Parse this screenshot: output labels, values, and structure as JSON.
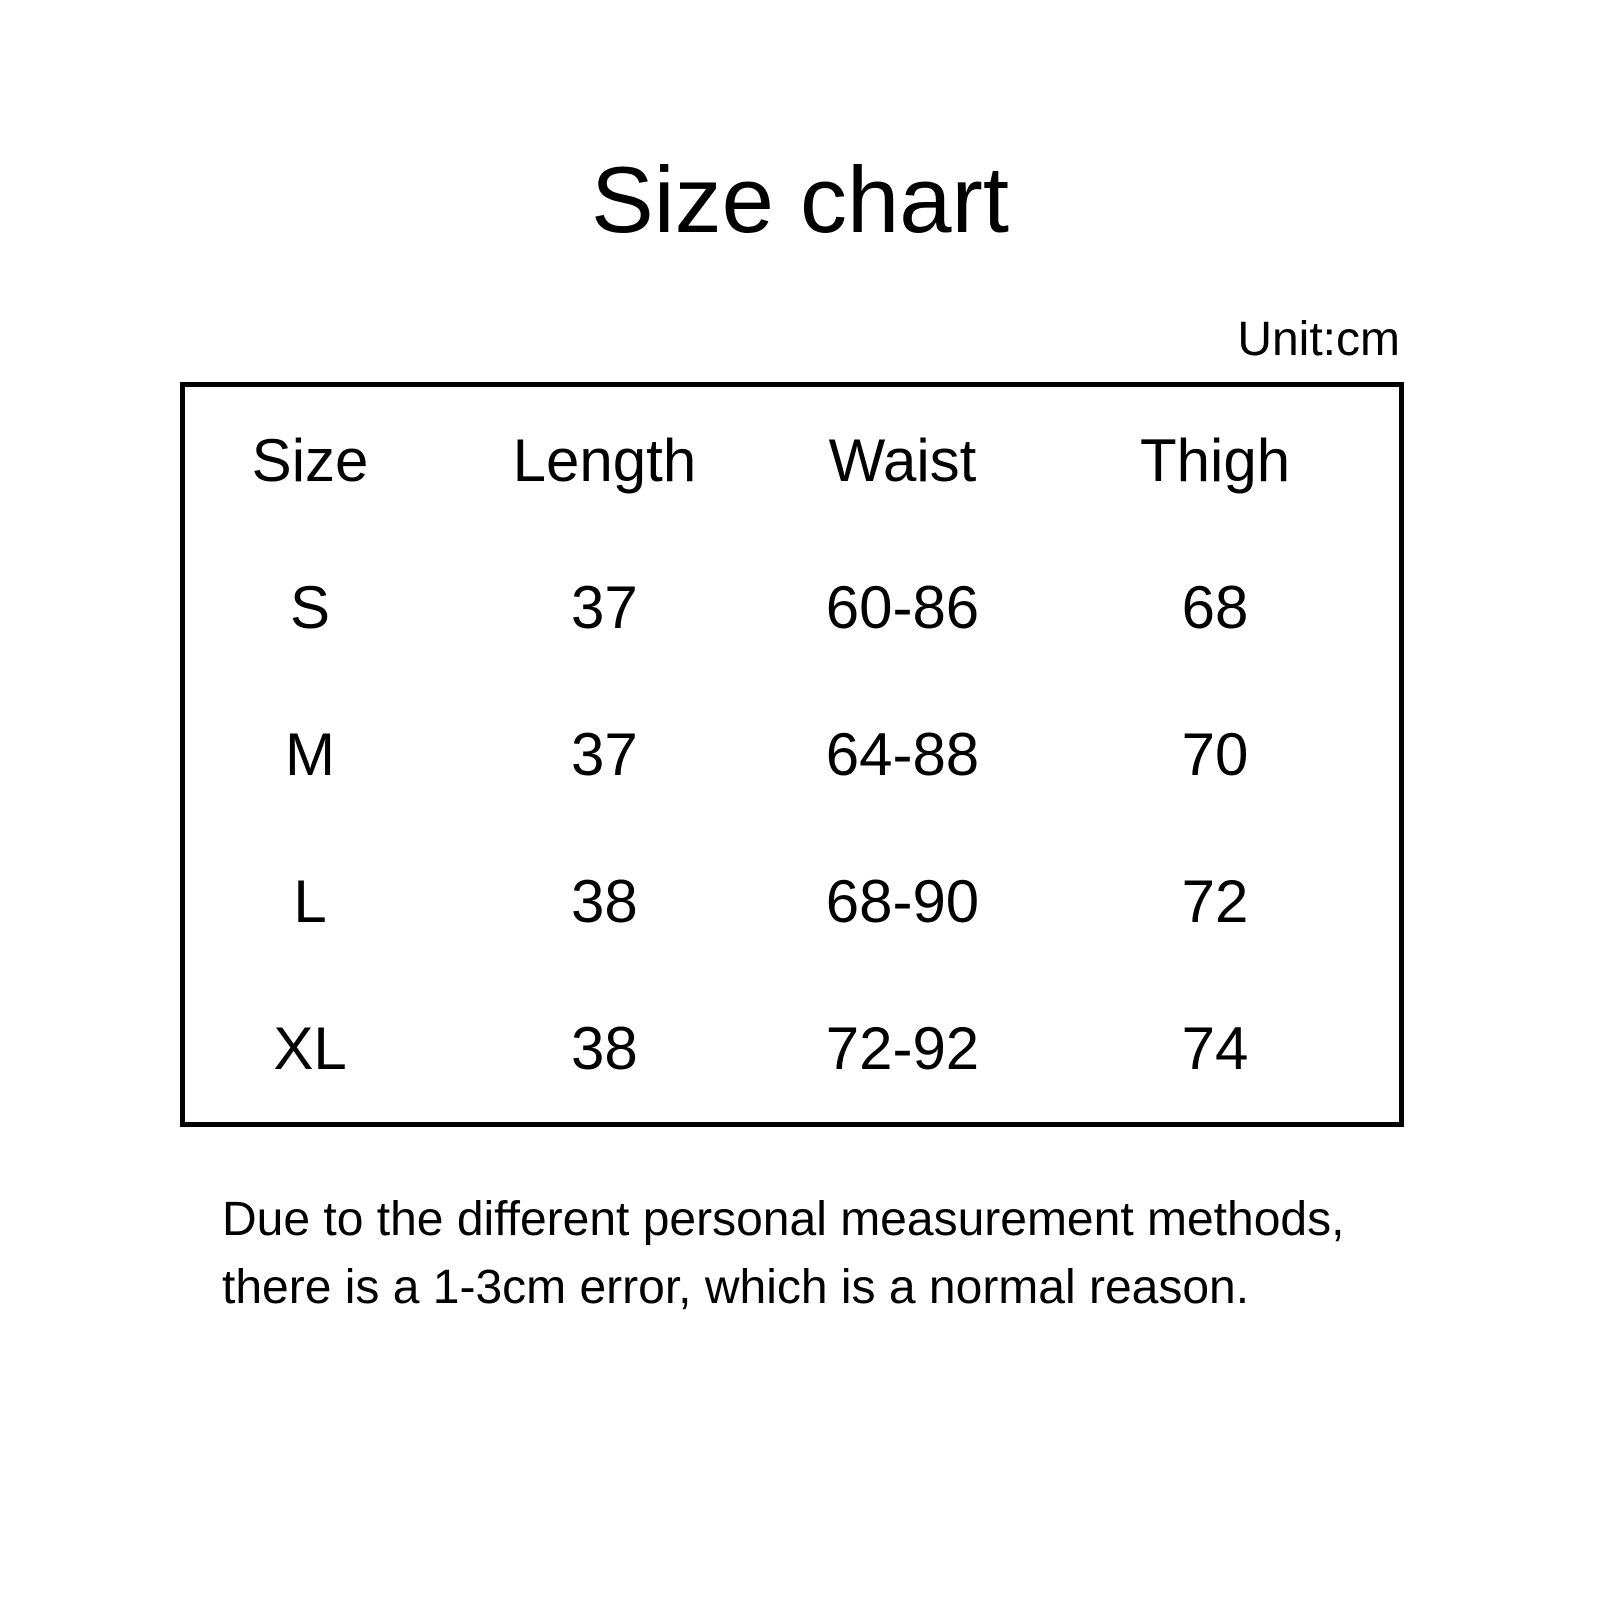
{
  "page": {
    "title": "Size chart",
    "unit_label": "Unit:cm",
    "background_color": "#ffffff",
    "text_color": "#000000",
    "table_border_color": "#000000"
  },
  "chart_data": {
    "type": "table",
    "title": "Size chart",
    "unit": "cm",
    "columns": [
      "Size",
      "Length",
      "Waist",
      "Thigh"
    ],
    "rows": [
      [
        "S",
        "37",
        "60-86",
        "68"
      ],
      [
        "M",
        "37",
        "64-88",
        "70"
      ],
      [
        "L",
        "38",
        "68-90",
        "72"
      ],
      [
        "XL",
        "38",
        "72-92",
        "74"
      ]
    ]
  },
  "footer": {
    "line1": "Due to the different personal measurement methods,",
    "line2": "there is a 1-3cm error, which is a normal reason."
  }
}
